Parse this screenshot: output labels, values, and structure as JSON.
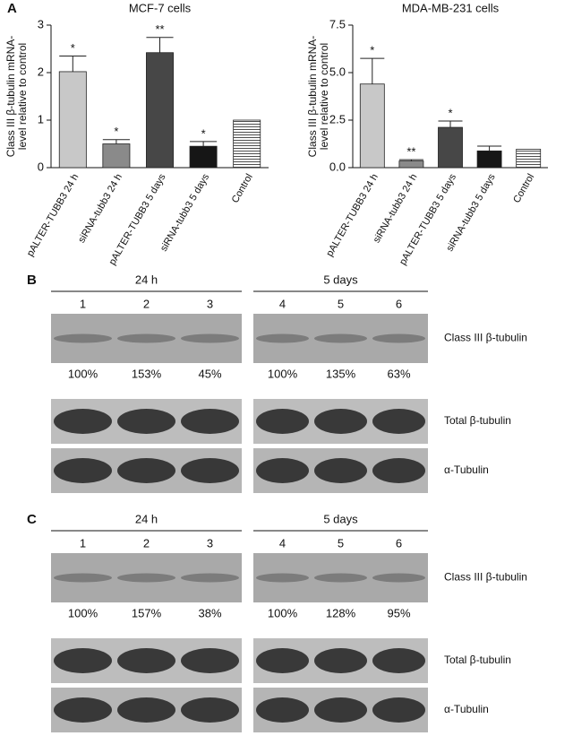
{
  "chart_data": [
    {
      "type": "bar",
      "title": "MCF-7 cells",
      "panel": "A",
      "ylabel": [
        "Class III β-tubulin mRNA-",
        "level relative to control"
      ],
      "categories": [
        "pALTER-TUBB3 24 h",
        "siRNA-tubb3 24 h",
        "pALTER-TUBB3 5 days",
        "siRNA-tubb3 5 days",
        "Control"
      ],
      "values": [
        2.02,
        0.5,
        2.42,
        0.45,
        1.0
      ],
      "errors": [
        0.33,
        0.09,
        0.32,
        0.1,
        0
      ],
      "significance": [
        "*",
        "*",
        "**",
        "*",
        null
      ],
      "colors": [
        "#c8c8c8",
        "#8a8a8a",
        "#474747",
        "#161616",
        "striped"
      ],
      "ylim": [
        0,
        3
      ],
      "yticks": [
        0,
        1,
        2,
        3
      ]
    },
    {
      "type": "bar",
      "title": "MDA-MB-231 cells",
      "ylabel": [
        "Class III β-tubulin mRNA-",
        "level relative to control"
      ],
      "categories": [
        "pALTER-TUBB3 24 h",
        "siRNA-tubb3 24 h",
        "pALTER-TUBB3 5 days",
        "siRNA-tubb3 5 days",
        "Control"
      ],
      "values": [
        4.4,
        0.35,
        2.12,
        0.88,
        0.97
      ],
      "errors": [
        1.35,
        0.07,
        0.33,
        0.25,
        0
      ],
      "significance": [
        "*",
        "**",
        "*",
        null,
        null
      ],
      "colors": [
        "#c8c8c8",
        "#8a8a8a",
        "#474747",
        "#161616",
        "striped"
      ],
      "ylim": [
        0,
        7.5
      ],
      "yticks": [
        {
          "value": 0,
          "label": "0.0"
        },
        2.5,
        {
          "value": 5,
          "label": "5.0"
        },
        7.5
      ]
    }
  ],
  "blot_panels": [
    {
      "label": "B",
      "groups": [
        {
          "label": "24 h",
          "lanes": [
            "1",
            "2",
            "3"
          ],
          "percent": [
            "100%",
            "153%",
            "45%"
          ]
        },
        {
          "label": "5 days",
          "lanes": [
            "4",
            "5",
            "6"
          ],
          "percent": [
            "100%",
            "135%",
            "63%"
          ]
        }
      ],
      "rows": [
        "Class III β-tubulin",
        "Total β-tubulin",
        "α-Tubulin"
      ]
    },
    {
      "label": "C",
      "groups": [
        {
          "label": "24 h",
          "lanes": [
            "1",
            "2",
            "3"
          ],
          "percent": [
            "100%",
            "157%",
            "38%"
          ]
        },
        {
          "label": "5 days",
          "lanes": [
            "4",
            "5",
            "6"
          ],
          "percent": [
            "100%",
            "128%",
            "95%"
          ]
        }
      ],
      "rows": [
        "Class III β-tubulin",
        "Total β-tubulin",
        "α-Tubulin"
      ]
    }
  ]
}
